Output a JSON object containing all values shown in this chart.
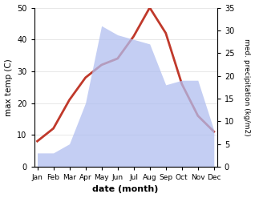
{
  "months": [
    "Jan",
    "Feb",
    "Mar",
    "Apr",
    "May",
    "Jun",
    "Jul",
    "Aug",
    "Sep",
    "Oct",
    "Nov",
    "Dec"
  ],
  "temp": [
    8,
    12,
    21,
    28,
    32,
    34,
    41,
    50,
    42,
    26,
    16,
    11
  ],
  "precip": [
    3,
    3,
    5,
    14,
    31,
    29,
    28,
    27,
    18,
    19,
    19,
    8
  ],
  "temp_color": "#c0392b",
  "precip_fill_color": "#b0bef0",
  "precip_border_color": "#b0bef0",
  "temp_ylim": [
    0,
    50
  ],
  "precip_ylim": [
    0,
    35
  ],
  "temp_yticks": [
    0,
    10,
    20,
    30,
    40,
    50
  ],
  "precip_yticks": [
    0,
    5,
    10,
    15,
    20,
    25,
    30,
    35
  ],
  "ylabel_left": "max temp (C)",
  "ylabel_right": "med. precipitation (kg/m2)",
  "xlabel": "date (month)",
  "linewidth": 2.0,
  "bg_color": "#ffffff",
  "grid_color": "#dddddd",
  "figsize": [
    3.18,
    2.47
  ],
  "dpi": 100
}
